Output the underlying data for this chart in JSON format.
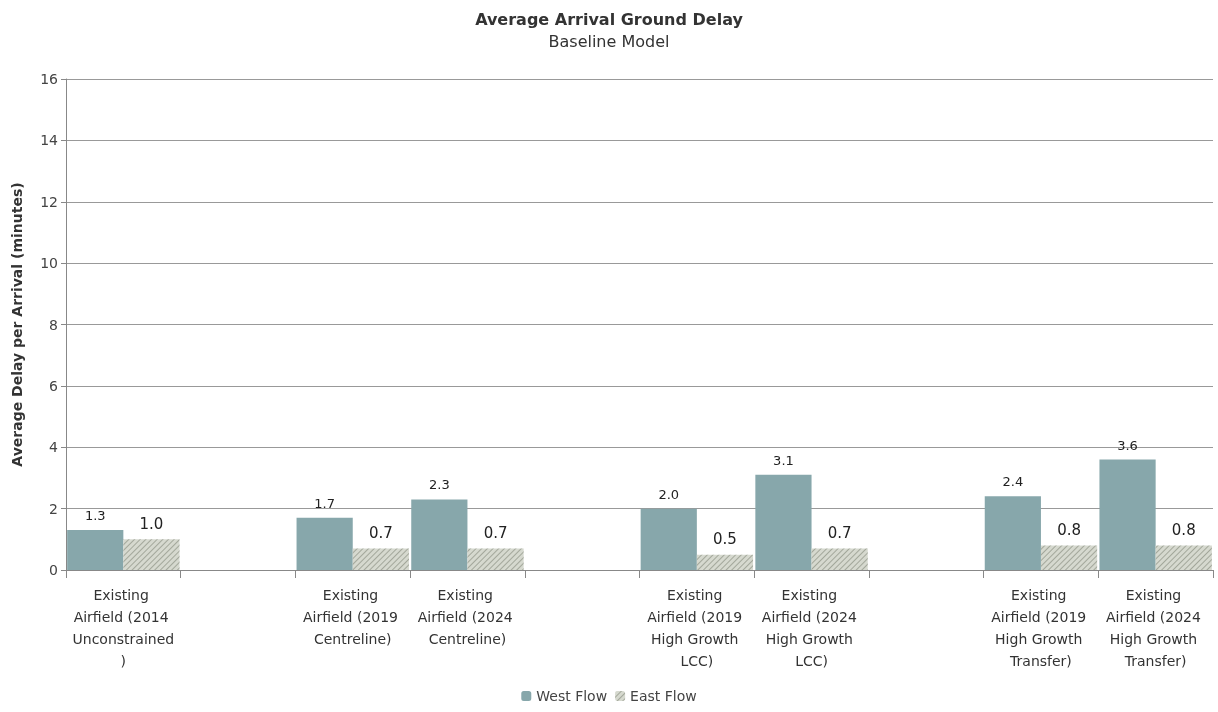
{
  "chart_data": {
    "type": "bar",
    "title": "Average Arrival Ground Delay",
    "subtitle": "Baseline Model",
    "ylabel": "Average Delay per Arrival (minutes)",
    "categories": [
      "Existing Airfield (2014 Unconstrained)",
      null,
      "Existing Airfield (2019 Centreline)",
      "Existing Airfield (2024 Centreline)",
      null,
      "Existing Airfield (2019 High Growth LCC)",
      "Existing Airfield (2024 High Growth LCC)",
      null,
      "Existing Airfield (2019 High Growth Transfer)",
      "Existing Airfield (2024 High Growth Transfer)"
    ],
    "series": [
      {
        "name": "West Flow",
        "color": "#87a7ab",
        "values": [
          1.3,
          null,
          1.7,
          2.3,
          null,
          2.0,
          3.1,
          null,
          2.4,
          3.6
        ],
        "value_labels": [
          "1.3",
          null,
          "1.7",
          "2.3",
          null,
          "2.0",
          "3.1",
          null,
          "2.4",
          "3.6"
        ]
      },
      {
        "name": "East Flow",
        "color": "#d6d9cf",
        "values": [
          1.0,
          null,
          0.7,
          0.7,
          null,
          0.5,
          0.7,
          null,
          0.8,
          0.8
        ],
        "value_labels": [
          "1.0",
          null,
          "0.7",
          "0.7",
          null,
          "0.5",
          "0.7",
          null,
          "0.8",
          "0.8"
        ]
      }
    ],
    "ylim": [
      0,
      16
    ],
    "yticks": [
      0,
      2,
      4,
      6,
      8,
      10,
      12,
      14,
      16
    ],
    "grid": "y",
    "legend": "bottom"
  }
}
